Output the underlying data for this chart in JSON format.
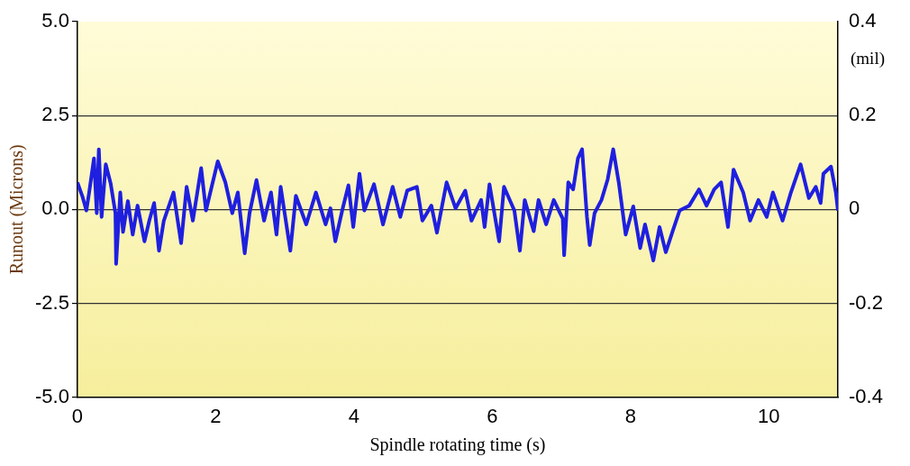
{
  "chart_data": {
    "type": "line",
    "xlabel": "Spindle rotating time (s)",
    "ylabel": "Runout (Microns)",
    "y2label": "(mil)",
    "xlim": [
      0,
      11
    ],
    "xticks": [
      0,
      2,
      4,
      6,
      8,
      10
    ],
    "ylim": [
      -5,
      5
    ],
    "yticks": [
      {
        "value": -5,
        "label": "-5.0"
      },
      {
        "value": -2.5,
        "label": "-2.5"
      },
      {
        "value": 0,
        "label": "0.0"
      },
      {
        "value": 2.5,
        "label": "2.5"
      },
      {
        "value": 5,
        "label": "5.0"
      }
    ],
    "y2lim": [
      -0.4,
      0.4
    ],
    "y2ticks": [
      -0.4,
      -0.2,
      0,
      0.2,
      0.4
    ],
    "grid": "y",
    "legend": false,
    "marker": "none",
    "line_style": "solid",
    "series": [
      {
        "color": "#1f1fe0",
        "x": [
          0,
          0.07,
          0.13,
          0.17,
          0.24,
          0.28,
          0.31,
          0.35,
          0.41,
          0.48,
          0.55,
          0.56,
          0.62,
          0.66,
          0.73,
          0.8,
          0.87,
          0.97,
          1.04,
          1.11,
          1.18,
          1.25,
          1.39,
          1.5,
          1.58,
          1.67,
          1.79,
          1.86,
          2.03,
          2.14,
          2.24,
          2.32,
          2.42,
          2.49,
          2.59,
          2.7,
          2.8,
          2.88,
          2.94,
          3.08,
          3.16,
          3.31,
          3.45,
          3.59,
          3.66,
          3.73,
          3.83,
          3.92,
          3.99,
          4.08,
          4.15,
          4.29,
          4.42,
          4.56,
          4.67,
          4.77,
          4.91,
          4.99,
          5.12,
          5.2,
          5.34,
          5.47,
          5.61,
          5.7,
          5.84,
          5.89,
          5.96,
          6.1,
          6.17,
          6.32,
          6.4,
          6.47,
          6.6,
          6.67,
          6.78,
          6.89,
          7.02,
          7.04,
          7.1,
          7.17,
          7.24,
          7.3,
          7.37,
          7.41,
          7.48,
          7.58,
          7.67,
          7.75,
          7.83,
          7.93,
          8.04,
          8.14,
          8.21,
          8.33,
          8.42,
          8.51,
          8.61,
          8.71,
          8.85,
          8.99,
          9.1,
          9.21,
          9.31,
          9.41,
          9.49,
          9.63,
          9.73,
          9.85,
          9.97,
          10.06,
          10.2,
          10.32,
          10.46,
          10.58,
          10.68,
          10.75,
          10.79,
          10.9,
          10.97,
          11
        ],
        "values": [
          0.72,
          0.36,
          -0.03,
          0.45,
          1.36,
          -0.1,
          1.6,
          -0.2,
          1.2,
          0.7,
          -0.1,
          -1.45,
          0.45,
          -0.6,
          0.22,
          -0.67,
          0.1,
          -0.85,
          -0.3,
          0.17,
          -1.1,
          -0.3,
          0.45,
          -0.9,
          0.6,
          -0.3,
          1.1,
          -0.03,
          1.28,
          0.72,
          -0.1,
          0.45,
          -1.17,
          -0.1,
          0.78,
          -0.3,
          0.45,
          -0.67,
          0.6,
          -1.1,
          0.36,
          -0.4,
          0.45,
          -0.4,
          0.03,
          -0.85,
          -0.03,
          0.64,
          -0.47,
          0.95,
          -0.03,
          0.67,
          -0.4,
          0.6,
          -0.2,
          0.5,
          0.6,
          -0.3,
          0.1,
          -0.62,
          0.72,
          0.03,
          0.5,
          -0.3,
          0.25,
          -0.47,
          0.67,
          -0.85,
          0.6,
          -0.03,
          -1.1,
          0.25,
          -0.58,
          0.25,
          -0.4,
          0.25,
          -0.25,
          -1.22,
          0.72,
          0.53,
          1.36,
          1.6,
          -0.2,
          -0.95,
          -0.1,
          0.25,
          0.8,
          1.6,
          0.72,
          -0.67,
          0.08,
          -1.03,
          -0.4,
          -1.36,
          -0.47,
          -1.14,
          -0.58,
          -0.03,
          0.1,
          0.53,
          0.1,
          0.53,
          0.72,
          -0.47,
          1.06,
          0.45,
          -0.3,
          0.25,
          -0.2,
          0.45,
          -0.3,
          0.45,
          1.2,
          0.3,
          0.6,
          0.17,
          0.95,
          1.14,
          0.45,
          -0.03
        ]
      }
    ]
  }
}
